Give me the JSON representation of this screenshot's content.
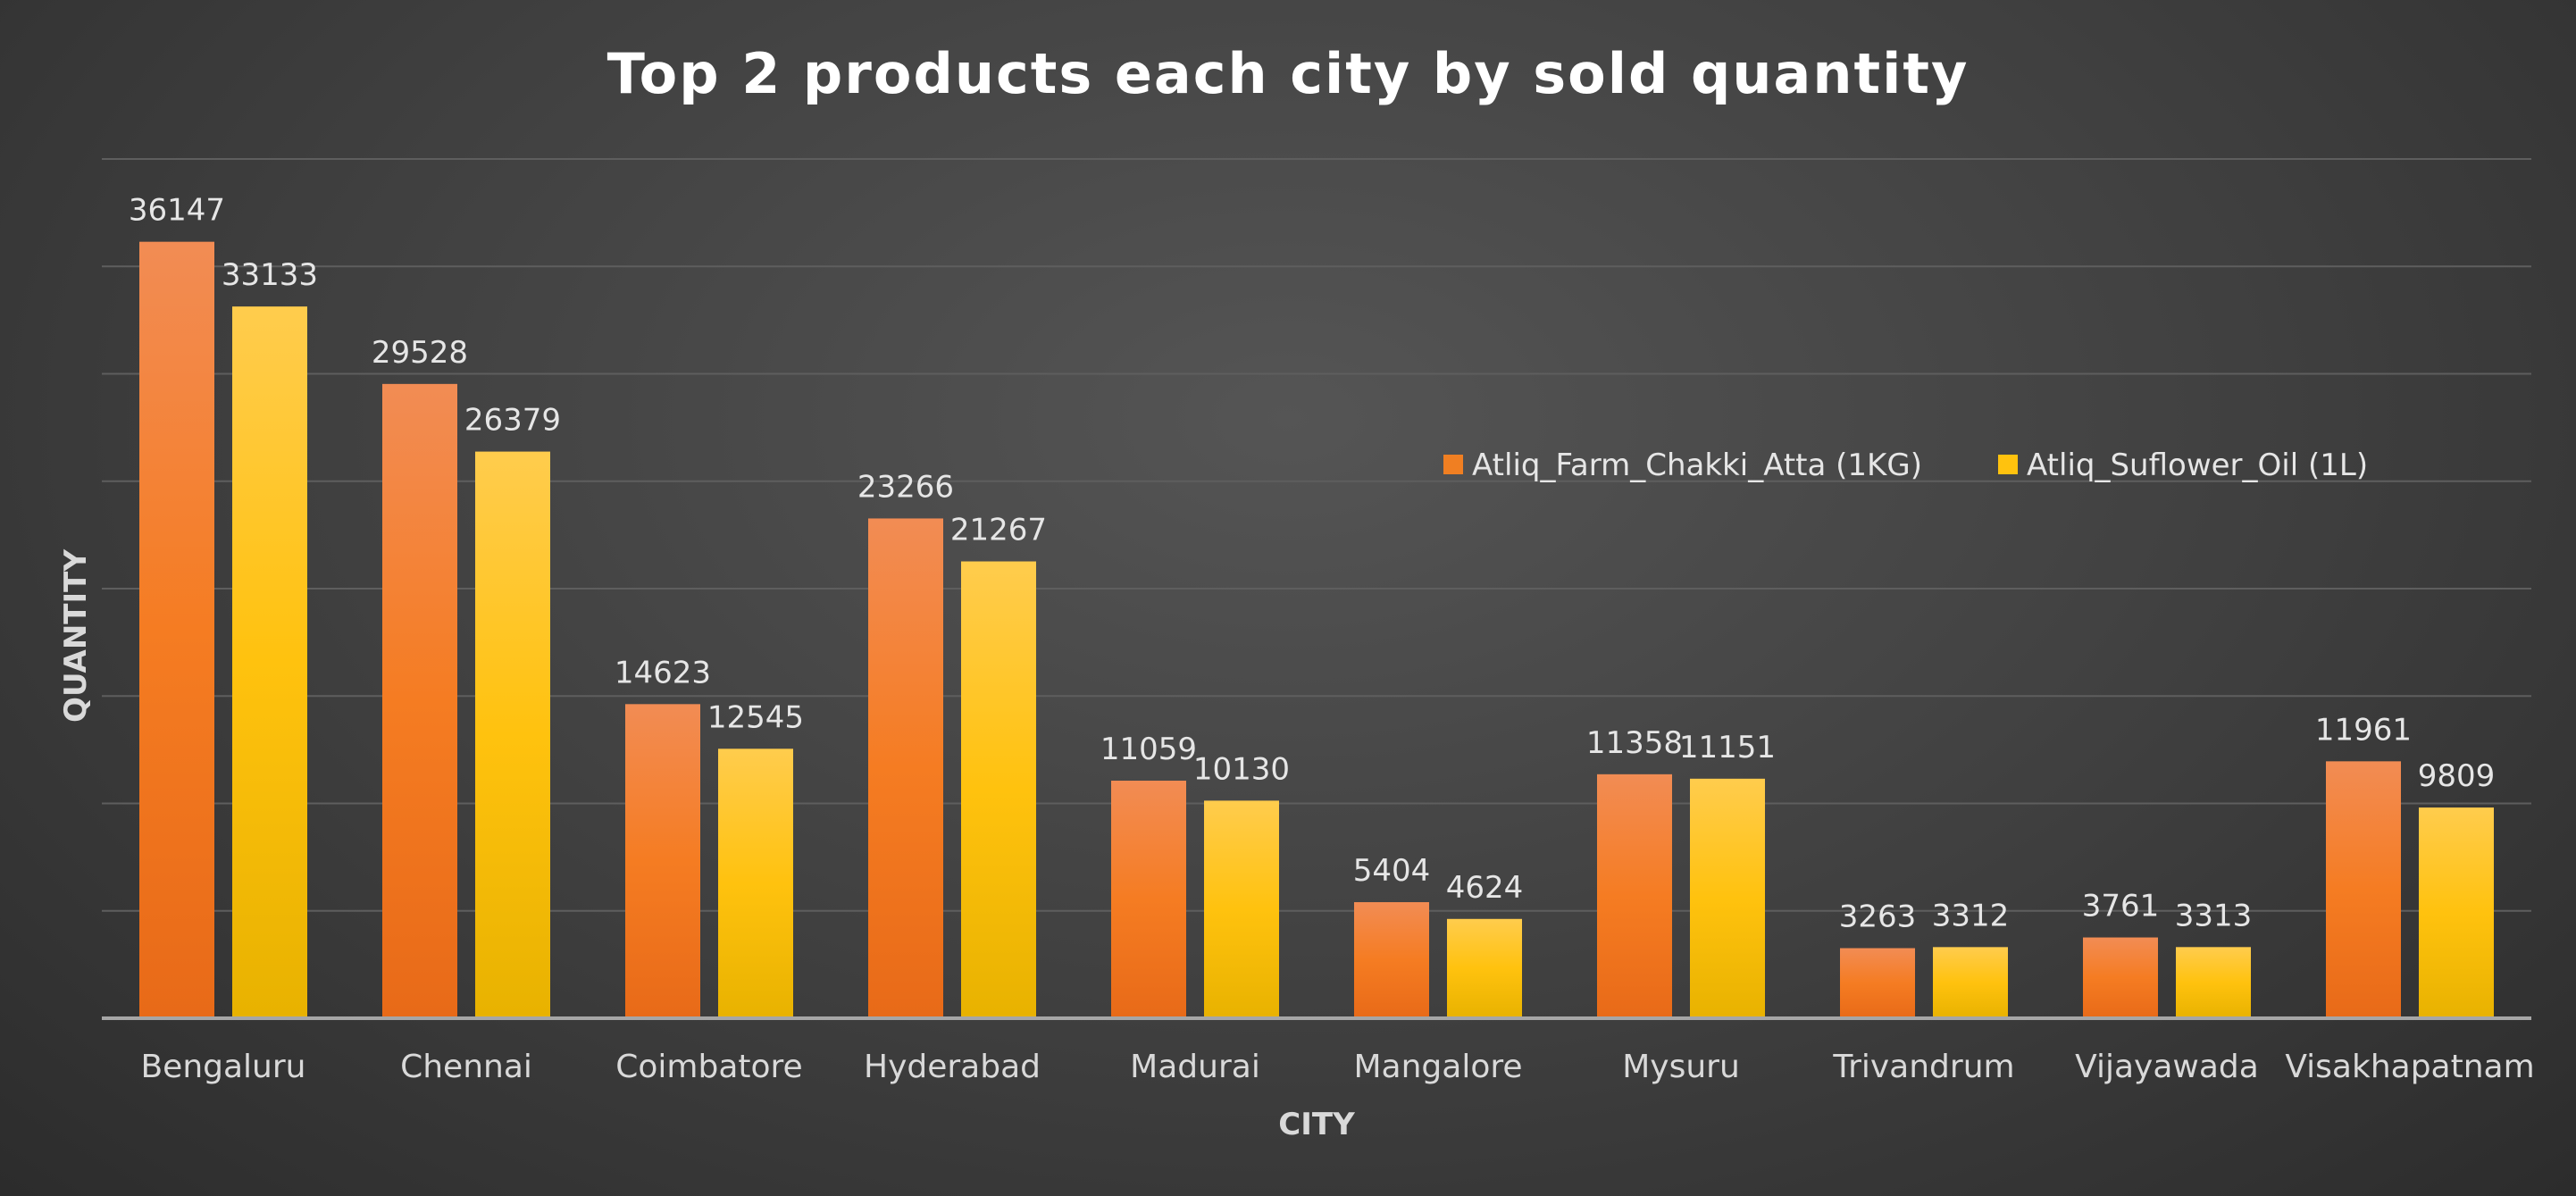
{
  "chart_data": {
    "type": "bar",
    "title": "Top 2 products each city by sold quantity",
    "xlabel": "CITY",
    "ylabel": "QUANTITY",
    "categories": [
      "Bengaluru",
      "Chennai",
      "Coimbatore",
      "Hyderabad",
      "Madurai",
      "Mangalore",
      "Mysuru",
      "Trivandrum",
      "Vijayawada",
      "Visakhapatnam"
    ],
    "series": [
      {
        "name": "Atliq_Farm_Chakki_Atta (1KG)",
        "color": "#f07f22",
        "values": [
          36147,
          29528,
          14623,
          23266,
          11059,
          5404,
          11358,
          3263,
          3761,
          11961
        ]
      },
      {
        "name": "Atliq_Suflower_Oil (1L)",
        "color": "#ffc20e",
        "values": [
          33133,
          26379,
          12545,
          21267,
          10130,
          4624,
          11151,
          3312,
          3313,
          9809
        ]
      }
    ],
    "ylim": [
      0,
      40000
    ],
    "grid": true,
    "data_labels": true,
    "legend_position": "top-right"
  }
}
